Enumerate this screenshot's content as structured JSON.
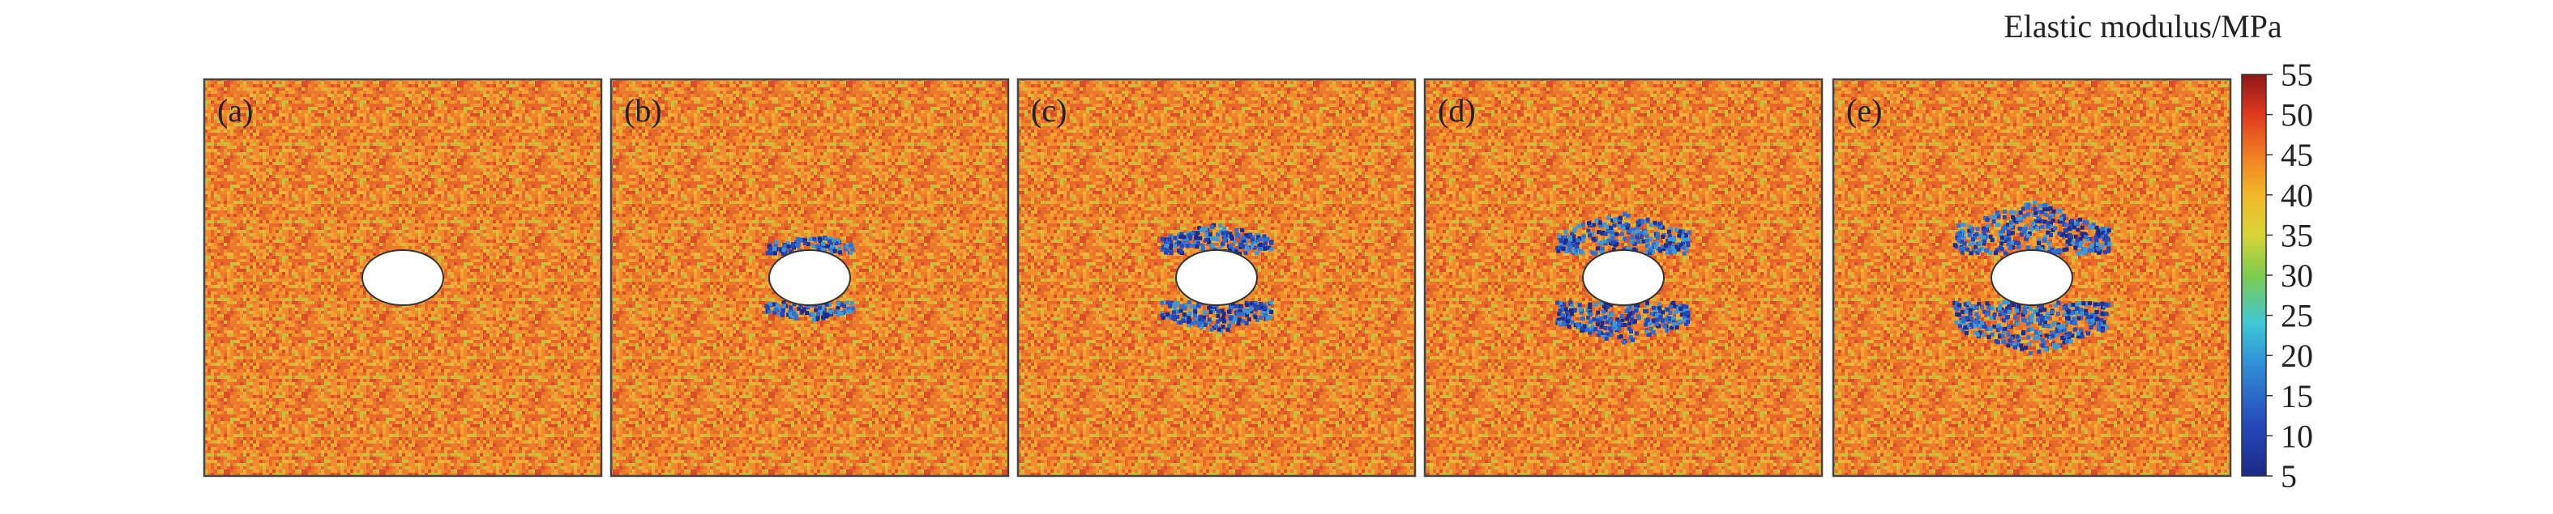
{
  "figure": {
    "panels": [
      {
        "label": "(a)"
      },
      {
        "label": "(b)"
      },
      {
        "label": "(c)"
      },
      {
        "label": "(d)"
      },
      {
        "label": "(e)"
      }
    ],
    "colorbar": {
      "title": "Elastic modulus/MPa",
      "range": [
        5,
        55
      ],
      "ticks": [
        55,
        50,
        45,
        40,
        35,
        30,
        25,
        20,
        15,
        10,
        5
      ]
    }
  }
}
